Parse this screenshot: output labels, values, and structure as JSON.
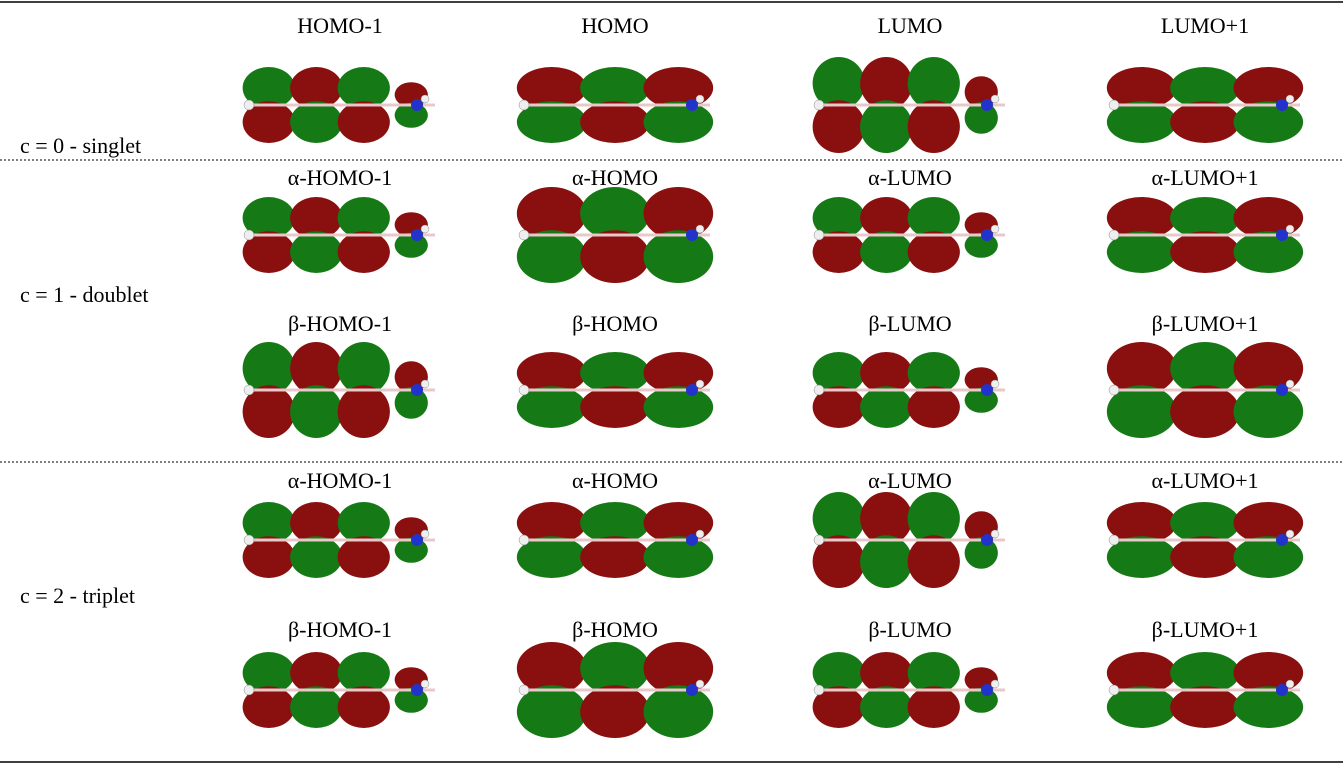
{
  "table": {
    "rows": [
      {
        "label": "c = 0 - singlet",
        "orbitals": [
          [
            "HOMO-1",
            "HOMO",
            "LUMO",
            "LUMO+1"
          ]
        ]
      },
      {
        "label": "c = 1 - doublet",
        "orbitals": [
          [
            "α-HOMO-1",
            "α-HOMO",
            "α-LUMO",
            "α-LUMO+1"
          ],
          [
            "β-HOMO-1",
            "β-HOMO",
            "β-LUMO",
            "β-LUMO+1"
          ]
        ]
      },
      {
        "label": "c = 2 - triplet",
        "orbitals": [
          [
            "α-HOMO-1",
            "α-HOMO",
            "α-LUMO",
            "α-LUMO+1"
          ],
          [
            "β-HOMO-1",
            "β-HOMO",
            "β-LUMO",
            "β-LUMO+1"
          ]
        ]
      }
    ]
  }
}
